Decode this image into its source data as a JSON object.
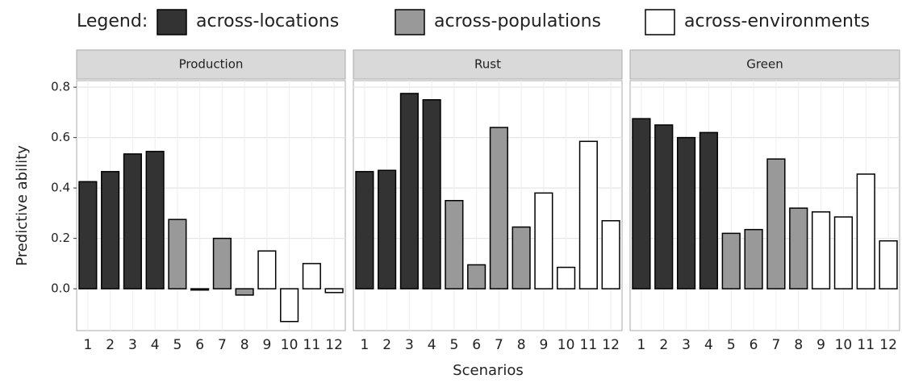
{
  "chart_data": {
    "type": "bar",
    "legend_title": "Legend:",
    "xlabel": "Scenarios",
    "ylabel": "Predictive ability",
    "categories": [
      1,
      2,
      3,
      4,
      5,
      6,
      7,
      8,
      9,
      10,
      11,
      12
    ],
    "series": [
      {
        "name": "across-locations",
        "color": "#333333"
      },
      {
        "name": "across-populations",
        "color": "#999999"
      },
      {
        "name": "across-environments",
        "color": "#ffffff"
      }
    ],
    "ylim": [
      -0.166,
      0.826
    ],
    "yticks": [
      {
        "value": 0,
        "label": "0.0"
      },
      0.2,
      0.4,
      0.6,
      0.8
    ],
    "grid": true,
    "facets": [
      {
        "title": "Production",
        "series": [
          {
            "values": [
              0.425,
              0.465,
              0.535,
              0.545,
              null,
              null,
              null,
              null,
              null,
              null,
              null,
              null
            ]
          },
          {
            "values": [
              null,
              null,
              null,
              null,
              0.275,
              -0.005,
              0.2,
              -0.025,
              null,
              null,
              null,
              null
            ]
          },
          {
            "values": [
              null,
              null,
              null,
              null,
              null,
              null,
              null,
              null,
              0.15,
              -0.13,
              0.1,
              -0.015
            ]
          }
        ]
      },
      {
        "title": "Rust",
        "series": [
          {
            "values": [
              0.465,
              0.47,
              0.775,
              0.75,
              null,
              null,
              null,
              null,
              null,
              null,
              null,
              null
            ]
          },
          {
            "values": [
              null,
              null,
              null,
              null,
              0.35,
              0.095,
              0.64,
              0.245,
              null,
              null,
              null,
              null
            ]
          },
          {
            "values": [
              null,
              null,
              null,
              null,
              null,
              null,
              null,
              null,
              0.38,
              0.085,
              0.585,
              0.27
            ]
          }
        ]
      },
      {
        "title": "Green",
        "series": [
          {
            "values": [
              0.675,
              0.65,
              0.6,
              0.62,
              null,
              null,
              null,
              null,
              null,
              null,
              null,
              null
            ]
          },
          {
            "values": [
              null,
              null,
              null,
              null,
              0.22,
              0.235,
              0.515,
              0.32,
              null,
              null,
              null,
              null
            ]
          },
          {
            "values": [
              null,
              null,
              null,
              null,
              null,
              null,
              null,
              null,
              0.305,
              0.285,
              0.455,
              0.19
            ]
          }
        ]
      }
    ]
  }
}
